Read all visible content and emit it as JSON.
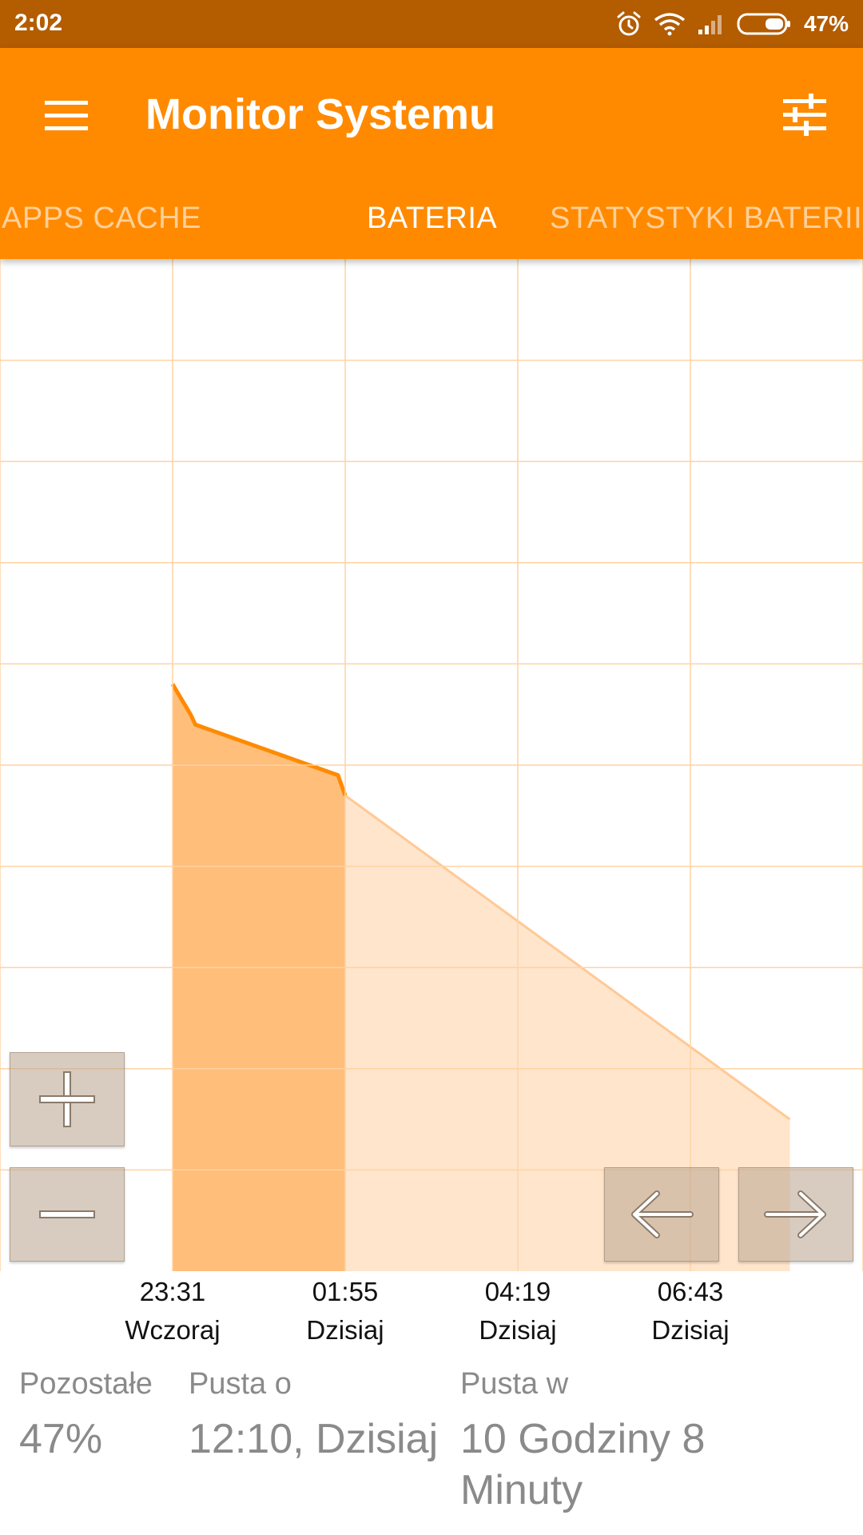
{
  "status_bar": {
    "time": "2:02",
    "battery_percent": "47%",
    "icons": [
      "alarm-icon",
      "wifi-icon",
      "signal-icon",
      "battery-icon"
    ]
  },
  "app_bar": {
    "title": "Monitor Systemu",
    "menu_icon": "hamburger-menu-icon",
    "settings_icon": "tune-sliders-icon",
    "color": "#ff8a00",
    "status_color": "#b35c00"
  },
  "tabs": [
    {
      "label": "APPS CACHE",
      "active": false
    },
    {
      "label": "BATERIA",
      "active": true
    },
    {
      "label": "STATYSTYKI BATERII",
      "active": false
    }
  ],
  "chart_data": {
    "type": "area",
    "x_tick_labels": [
      {
        "time": "23:31",
        "day": "Wczoraj"
      },
      {
        "time": "01:55",
        "day": "Dzisiaj"
      },
      {
        "time": "04:19",
        "day": "Dzisiaj"
      },
      {
        "time": "06:43",
        "day": "Dzisiaj"
      }
    ],
    "ylim": [
      0,
      100
    ],
    "grid": true,
    "measured": {
      "x_minutes": [
        -144,
        -129,
        -125,
        -6,
        0
      ],
      "y": [
        58,
        55,
        54,
        49,
        47
      ]
    },
    "projected": {
      "x_minutes": [
        0,
        371
      ],
      "y": [
        47,
        15
      ]
    },
    "colors": {
      "measured_fill": "#ffbe7a",
      "measured_line": "#ff8a00",
      "projected_fill": "#ffe5cc",
      "grid": "#ffd3a3"
    }
  },
  "controls": {
    "zoom_in": "plus-icon",
    "zoom_out": "minus-icon",
    "pan_left": "arrow-left-icon",
    "pan_right": "arrow-right-icon"
  },
  "info": {
    "remaining_label": "Pozostałe",
    "remaining_value": "47%",
    "empty_at_label": "Pusta o",
    "empty_at_value": "12:10, Dzisiaj",
    "empty_in_label": "Pusta w",
    "empty_in_value": "10 Godziny 8 Minuty"
  }
}
